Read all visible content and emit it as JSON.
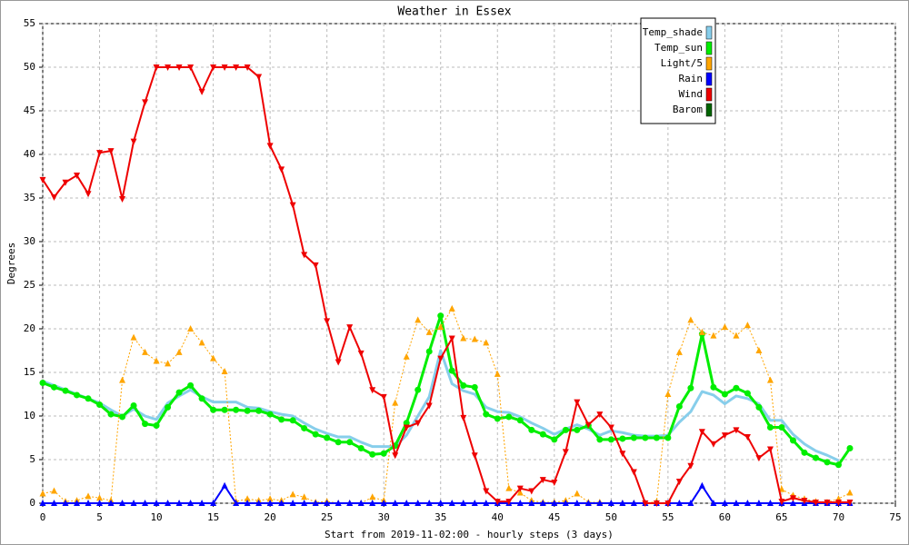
{
  "chart_data": {
    "type": "line",
    "title": "Weather in Essex",
    "x_label": "Start from 2019-11-02:00 - hourly steps (3 days)",
    "y_label": "Degrees",
    "x": [
      0,
      1,
      2,
      3,
      4,
      5,
      6,
      7,
      8,
      9,
      10,
      11,
      12,
      13,
      14,
      15,
      16,
      17,
      18,
      19,
      20,
      21,
      22,
      23,
      24,
      25,
      26,
      27,
      28,
      29,
      30,
      31,
      32,
      33,
      34,
      35,
      36,
      37,
      38,
      39,
      40,
      41,
      42,
      43,
      44,
      45,
      46,
      47,
      48,
      49,
      50,
      51,
      52,
      53,
      54,
      55,
      56,
      57,
      58,
      59,
      60,
      61,
      62,
      63,
      64,
      65,
      66,
      67,
      68,
      69,
      70,
      71
    ],
    "xlim": [
      0,
      75
    ],
    "xticks": [
      0,
      5,
      10,
      15,
      20,
      25,
      30,
      35,
      40,
      45,
      50,
      55,
      60,
      65,
      70,
      75
    ],
    "ylim": [
      0,
      55
    ],
    "yticks": [
      0,
      5,
      10,
      15,
      20,
      25,
      30,
      35,
      40,
      45,
      50,
      55
    ],
    "grid": true,
    "legend": "upper right",
    "series": [
      {
        "name": "Temp_shade",
        "color": "#87ceeb",
        "marker": "none",
        "dashed": false,
        "line_width": 3,
        "values": [
          14,
          13.5,
          13,
          12.5,
          12,
          11.5,
          10.7,
          10,
          10.8,
          10,
          9.6,
          11.5,
          12.3,
          13,
          12.2,
          11.6,
          11.6,
          11.6,
          11,
          10.9,
          10.5,
          10.2,
          10,
          9.2,
          8.5,
          8,
          7.6,
          7.6,
          7,
          6.5,
          6.5,
          6.5,
          7.8,
          10,
          12.2,
          17.5,
          13.7,
          12.9,
          12.5,
          11,
          10.5,
          10.4,
          9.9,
          9.2,
          8.6,
          7.9,
          8.5,
          9,
          8.5,
          7.8,
          8.3,
          8.1,
          7.8,
          7.7,
          7.7,
          7.8,
          9.3,
          10.5,
          12.8,
          12.4,
          11.4,
          12.3,
          12,
          11.4,
          9.5,
          9.5,
          7.9,
          6.8,
          6,
          5.5,
          4.9,
          null
        ]
      },
      {
        "name": "Temp_sun",
        "color": "#00ee00",
        "marker": "circle",
        "dashed": false,
        "line_width": 3,
        "values": [
          13.8,
          13.3,
          12.9,
          12.4,
          12,
          11.3,
          10.2,
          9.9,
          11.2,
          9.1,
          8.9,
          11,
          12.7,
          13.5,
          12,
          10.7,
          10.7,
          10.7,
          10.6,
          10.6,
          10.2,
          9.6,
          9.5,
          8.6,
          7.9,
          7.5,
          7,
          7,
          6.3,
          5.6,
          5.7,
          6.6,
          9.2,
          13,
          17.4,
          21.5,
          15.2,
          13.5,
          13.3,
          10.2,
          9.7,
          9.9,
          9.5,
          8.4,
          7.9,
          7.3,
          8.4,
          8.4,
          8.9,
          7.3,
          7.3,
          7.4,
          7.5,
          7.5,
          7.5,
          7.5,
          11.1,
          13.2,
          19.4,
          13.3,
          12.5,
          13.2,
          12.6,
          11,
          8.7,
          8.7,
          7.2,
          5.8,
          5.2,
          4.7,
          4.4,
          6.3
        ]
      },
      {
        "name": "Light/5",
        "color": "#ffa500",
        "marker": "triangle-up",
        "dashed": true,
        "line_width": 1,
        "values": [
          1.1,
          1.4,
          0.2,
          0.3,
          0.8,
          0.6,
          0.3,
          14.1,
          19,
          17.3,
          16.3,
          16,
          17.3,
          20,
          18.4,
          16.6,
          15.1,
          0.2,
          0.5,
          0.3,
          0.5,
          0.3,
          1,
          0.7,
          0.1,
          0.2,
          0,
          0,
          0,
          0.7,
          0.3,
          11.5,
          16.8,
          21,
          19.6,
          20.2,
          22.3,
          18.9,
          18.8,
          18.4,
          14.8,
          1.7,
          1.2,
          0.3,
          0.1,
          0.1,
          0.3,
          1.1,
          0.1,
          0.1,
          0,
          0,
          0,
          0,
          0.2,
          12.5,
          17.3,
          21,
          19.6,
          19.2,
          20.2,
          19.2,
          20.4,
          17.5,
          14.1,
          1.6,
          0.9,
          0.5,
          0.2,
          0.1,
          0.5,
          1.2
        ]
      },
      {
        "name": "Rain",
        "color": "#0000ff",
        "marker": "triangle-up",
        "dashed": false,
        "line_width": 2,
        "values": [
          0,
          0,
          0,
          0,
          0,
          0,
          0,
          0,
          0,
          0,
          0,
          0,
          0,
          0,
          0,
          0,
          2,
          0,
          0,
          0,
          0,
          0,
          0,
          0,
          0,
          0,
          0,
          0,
          0,
          0,
          0,
          0,
          0,
          0,
          0,
          0,
          0,
          0,
          0,
          0,
          0,
          0,
          0,
          0,
          0,
          0,
          0,
          0,
          0,
          0,
          0,
          0,
          0,
          0,
          0,
          0,
          0,
          0,
          2,
          0,
          0,
          0,
          0,
          0,
          0,
          0,
          0,
          0,
          0,
          0,
          0,
          0
        ]
      },
      {
        "name": "Wind",
        "color": "#ee0000",
        "marker": "triangle-down",
        "dashed": false,
        "line_width": 2,
        "values": [
          37.1,
          35.1,
          36.8,
          37.6,
          35.5,
          40.2,
          40.4,
          34.9,
          41.5,
          46,
          50,
          50,
          50,
          50,
          47.2,
          50,
          50,
          50,
          50,
          48.9,
          41,
          38.3,
          34.2,
          28.5,
          27.3,
          20.9,
          16.2,
          20.2,
          17.2,
          13,
          12.2,
          5.5,
          8.7,
          9.2,
          11.2,
          16.6,
          18.9,
          9.8,
          5.5,
          1.4,
          0.2,
          0.2,
          1.7,
          1.4,
          2.7,
          2.4,
          5.9,
          11.6,
          9,
          10.2,
          8.7,
          5.7,
          3.6,
          0,
          0,
          0,
          2.5,
          4.3,
          8.2,
          6.8,
          7.8,
          8.4,
          7.6,
          5.2,
          6.2,
          0.2,
          0.6,
          0.3,
          0.1,
          0.1,
          0.1,
          0.1
        ]
      },
      {
        "name": "Barom",
        "color": "#006400",
        "marker": "none",
        "dashed": false,
        "line_width": 2,
        "values": [
          null,
          null,
          null,
          null,
          null,
          null,
          null,
          null,
          null,
          null,
          null,
          null,
          null,
          null,
          null,
          null,
          null,
          null,
          null,
          null,
          null,
          null,
          null,
          null,
          null,
          null,
          null,
          null,
          null,
          null,
          null,
          null,
          null,
          null,
          null,
          null,
          null,
          null,
          null,
          null,
          null,
          null,
          null,
          null,
          null,
          null,
          null,
          null,
          null,
          null,
          null,
          null,
          null,
          null,
          null,
          null,
          null,
          null,
          null,
          null,
          null,
          null,
          null,
          null,
          null,
          null,
          null,
          null,
          null,
          null,
          null,
          null
        ]
      }
    ]
  }
}
